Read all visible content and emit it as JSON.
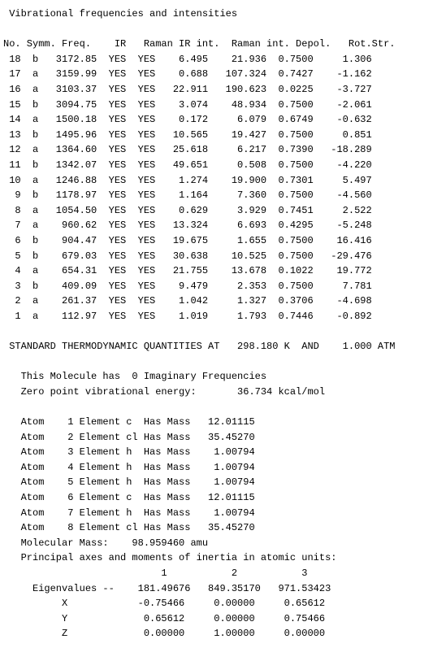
{
  "title": "Vibrational frequencies and intensities",
  "table": {
    "headers": [
      "No.",
      "Symm.",
      "Freq.",
      "IR",
      "Raman",
      "IR int.",
      "Raman int.",
      "Depol.",
      "Rot.Str."
    ],
    "rows": [
      {
        "no": "18",
        "symm": "b",
        "freq": "3172.85",
        "ir": "YES",
        "raman": "YES",
        "irint": "6.495",
        "ramint": "21.936",
        "depol": "0.7500",
        "rot": "1.306"
      },
      {
        "no": "17",
        "symm": "a",
        "freq": "3159.99",
        "ir": "YES",
        "raman": "YES",
        "irint": "0.688",
        "ramint": "107.324",
        "depol": "0.7427",
        "rot": "-1.162"
      },
      {
        "no": "16",
        "symm": "a",
        "freq": "3103.37",
        "ir": "YES",
        "raman": "YES",
        "irint": "22.911",
        "ramint": "190.623",
        "depol": "0.0225",
        "rot": "-3.727"
      },
      {
        "no": "15",
        "symm": "b",
        "freq": "3094.75",
        "ir": "YES",
        "raman": "YES",
        "irint": "3.074",
        "ramint": "48.934",
        "depol": "0.7500",
        "rot": "-2.061"
      },
      {
        "no": "14",
        "symm": "a",
        "freq": "1500.18",
        "ir": "YES",
        "raman": "YES",
        "irint": "0.172",
        "ramint": "6.079",
        "depol": "0.6749",
        "rot": "-0.632"
      },
      {
        "no": "13",
        "symm": "b",
        "freq": "1495.96",
        "ir": "YES",
        "raman": "YES",
        "irint": "10.565",
        "ramint": "19.427",
        "depol": "0.7500",
        "rot": "0.851"
      },
      {
        "no": "12",
        "symm": "a",
        "freq": "1364.60",
        "ir": "YES",
        "raman": "YES",
        "irint": "25.618",
        "ramint": "6.217",
        "depol": "0.7390",
        "rot": "-18.289"
      },
      {
        "no": "11",
        "symm": "b",
        "freq": "1342.07",
        "ir": "YES",
        "raman": "YES",
        "irint": "49.651",
        "ramint": "0.508",
        "depol": "0.7500",
        "rot": "-4.220"
      },
      {
        "no": "10",
        "symm": "a",
        "freq": "1246.88",
        "ir": "YES",
        "raman": "YES",
        "irint": "1.274",
        "ramint": "19.900",
        "depol": "0.7301",
        "rot": "5.497"
      },
      {
        "no": "9",
        "symm": "b",
        "freq": "1178.97",
        "ir": "YES",
        "raman": "YES",
        "irint": "1.164",
        "ramint": "7.360",
        "depol": "0.7500",
        "rot": "-4.560"
      },
      {
        "no": "8",
        "symm": "a",
        "freq": "1054.50",
        "ir": "YES",
        "raman": "YES",
        "irint": "0.629",
        "ramint": "3.929",
        "depol": "0.7451",
        "rot": "2.522"
      },
      {
        "no": "7",
        "symm": "a",
        "freq": "960.62",
        "ir": "YES",
        "raman": "YES",
        "irint": "13.324",
        "ramint": "6.693",
        "depol": "0.4295",
        "rot": "-5.248"
      },
      {
        "no": "6",
        "symm": "b",
        "freq": "904.47",
        "ir": "YES",
        "raman": "YES",
        "irint": "19.675",
        "ramint": "1.655",
        "depol": "0.7500",
        "rot": "16.416"
      },
      {
        "no": "5",
        "symm": "b",
        "freq": "679.03",
        "ir": "YES",
        "raman": "YES",
        "irint": "30.638",
        "ramint": "10.525",
        "depol": "0.7500",
        "rot": "-29.476"
      },
      {
        "no": "4",
        "symm": "a",
        "freq": "654.31",
        "ir": "YES",
        "raman": "YES",
        "irint": "21.755",
        "ramint": "13.678",
        "depol": "0.1022",
        "rot": "19.772"
      },
      {
        "no": "3",
        "symm": "b",
        "freq": "409.09",
        "ir": "YES",
        "raman": "YES",
        "irint": "9.479",
        "ramint": "2.353",
        "depol": "0.7500",
        "rot": "7.781"
      },
      {
        "no": "2",
        "symm": "a",
        "freq": "261.37",
        "ir": "YES",
        "raman": "YES",
        "irint": "1.042",
        "ramint": "1.327",
        "depol": "0.3706",
        "rot": "-4.698"
      },
      {
        "no": "1",
        "symm": "a",
        "freq": "112.97",
        "ir": "YES",
        "raman": "YES",
        "irint": "1.019",
        "ramint": "1.793",
        "depol": "0.7446",
        "rot": "-0.892"
      }
    ]
  },
  "thermo_line": {
    "prefix": "STANDARD THERMODYNAMIC QUANTITIES AT",
    "temp": "298.180 K",
    "and": "AND",
    "pres": "1.000 ATM"
  },
  "imag_line": "This Molecule has  0 Imaginary Frequencies",
  "zpe_label": "Zero point vibrational energy:",
  "zpe_value": "36.734 kcal/mol",
  "atoms": [
    {
      "idx": "1",
      "el": "c",
      "mass": "12.01115"
    },
    {
      "idx": "2",
      "el": "cl",
      "mass": "35.45270"
    },
    {
      "idx": "3",
      "el": "h",
      "mass": "1.00794"
    },
    {
      "idx": "4",
      "el": "h",
      "mass": "1.00794"
    },
    {
      "idx": "5",
      "el": "h",
      "mass": "1.00794"
    },
    {
      "idx": "6",
      "el": "c",
      "mass": "12.01115"
    },
    {
      "idx": "7",
      "el": "h",
      "mass": "1.00794"
    },
    {
      "idx": "8",
      "el": "cl",
      "mass": "35.45270"
    }
  ],
  "mol_mass_label": "Molecular Mass:",
  "mol_mass_value": "98.959460 amu",
  "inertia_title": "Principal axes and moments of inertia in atomic units:",
  "inertia": {
    "cols": [
      "1",
      "2",
      "3"
    ],
    "eigen_label": "Eigenvalues --",
    "eigen": [
      "181.49676",
      "849.35170",
      "971.53423"
    ],
    "rows": [
      {
        "label": "X",
        "v": [
          "-0.75466",
          "0.00000",
          "0.65612"
        ]
      },
      {
        "label": "Y",
        "v": [
          "0.65612",
          "0.00000",
          "0.75466"
        ]
      },
      {
        "label": "Z",
        "v": [
          "0.00000",
          "1.00000",
          "0.00000"
        ]
      }
    ]
  }
}
